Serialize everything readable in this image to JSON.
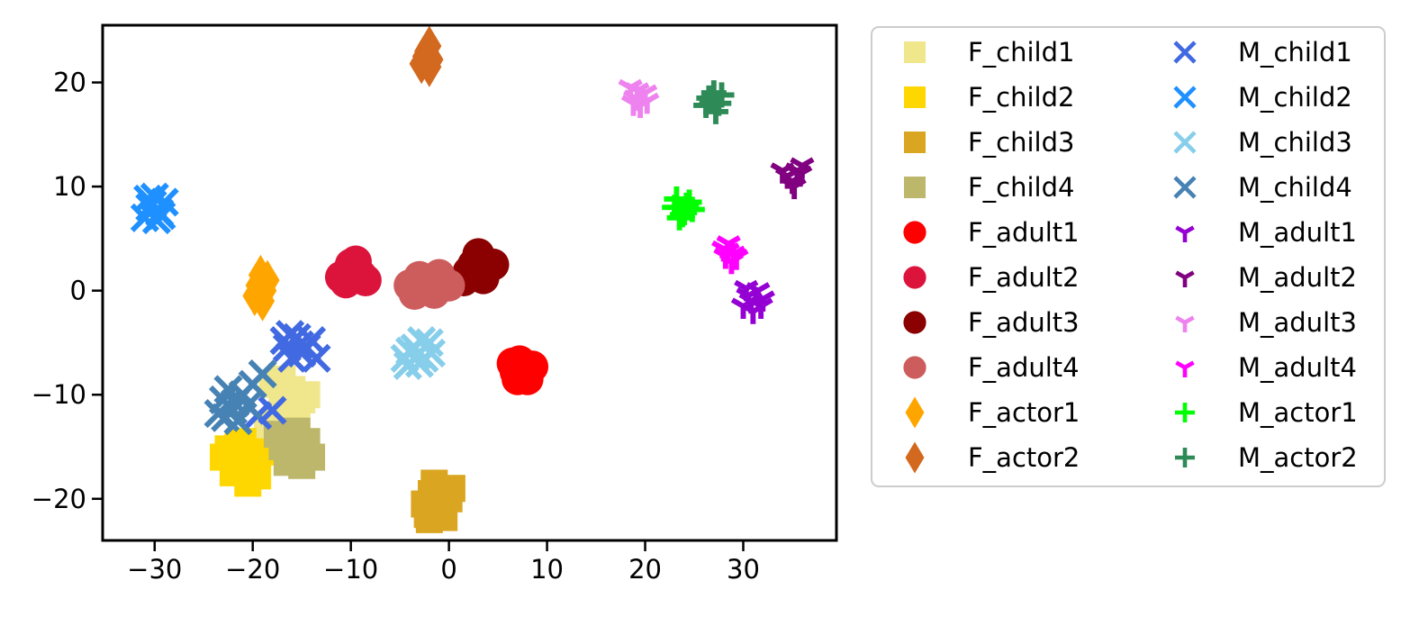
{
  "chart_data": {
    "type": "scatter",
    "title": "",
    "xlabel": "",
    "ylabel": "",
    "xlim": [
      -35.3,
      39.5
    ],
    "ylim": [
      -24,
      25.5
    ],
    "xticks": [
      -30,
      -20,
      -10,
      0,
      10,
      20,
      30
    ],
    "yticks": [
      -20,
      -10,
      0,
      10,
      20
    ],
    "xtick_labels": [
      "−30",
      "−20",
      "−10",
      "0",
      "10",
      "20",
      "30"
    ],
    "ytick_labels": [
      "−20",
      "−10",
      "0",
      "10",
      "20"
    ],
    "grid": false,
    "legend_position": "outside-right",
    "legend_columns": 2,
    "series": [
      {
        "name": "F_child1",
        "marker": "square",
        "color": "#F0E68C",
        "points": [
          [
            -18,
            -9
          ],
          [
            -17.5,
            -12
          ],
          [
            -16,
            -9.5
          ],
          [
            -15,
            -10.5
          ],
          [
            -14.5,
            -10
          ],
          [
            -17,
            -8.5
          ],
          [
            -16.5,
            -11.5
          ],
          [
            -18.5,
            -13
          ],
          [
            -15.5,
            -12.5
          ],
          [
            -17,
            -10.8
          ]
        ]
      },
      {
        "name": "F_child2",
        "marker": "square",
        "color": "#FFD700",
        "points": [
          [
            -23,
            -16
          ],
          [
            -21.5,
            -15
          ],
          [
            -20,
            -16.5
          ],
          [
            -22,
            -17.5
          ],
          [
            -20.5,
            -18.5
          ],
          [
            -19,
            -15.5
          ],
          [
            -21,
            -14.5
          ],
          [
            -19.5,
            -17.8
          ],
          [
            -22.5,
            -15.2
          ],
          [
            -21.2,
            -16.8
          ]
        ]
      },
      {
        "name": "F_child3",
        "marker": "square",
        "color": "#DAA520",
        "points": [
          [
            -1.8,
            -19.5
          ],
          [
            -1,
            -21
          ],
          [
            -2.5,
            -20.5
          ],
          [
            0,
            -20
          ],
          [
            -1.5,
            -18.5
          ],
          [
            -0.5,
            -21.8
          ],
          [
            -2.2,
            -21.5
          ],
          [
            0.3,
            -19
          ],
          [
            -1.2,
            -20.2
          ],
          [
            -2,
            -22
          ]
        ]
      },
      {
        "name": "F_child4",
        "marker": "square",
        "color": "#BDB76B",
        "points": [
          [
            -17,
            -15
          ],
          [
            -16,
            -14
          ],
          [
            -15,
            -15.5
          ],
          [
            -14,
            -16
          ],
          [
            -16.5,
            -16.5
          ],
          [
            -15.5,
            -13.5
          ],
          [
            -17.5,
            -13.8
          ],
          [
            -14.5,
            -14.5
          ],
          [
            -16.2,
            -15.3
          ],
          [
            -15,
            -16.8
          ]
        ]
      },
      {
        "name": "F_adult1",
        "marker": "circle",
        "color": "#FF0000",
        "points": [
          [
            6.5,
            -7
          ],
          [
            7.5,
            -8
          ],
          [
            8.5,
            -7.3
          ],
          [
            7,
            -8.5
          ],
          [
            8,
            -8.5
          ],
          [
            7.2,
            -6.8
          ],
          [
            6.8,
            -7.8
          ]
        ]
      },
      {
        "name": "F_adult2",
        "marker": "circle",
        "color": "#DC143C",
        "points": [
          [
            -11,
            1.3
          ],
          [
            -10,
            2.5
          ],
          [
            -9,
            1.5
          ],
          [
            -10.5,
            0.8
          ],
          [
            -8.5,
            1
          ],
          [
            -9.5,
            2.8
          ],
          [
            -10.2,
            1.6
          ]
        ]
      },
      {
        "name": "F_adult3",
        "marker": "circle",
        "color": "#8B0000",
        "points": [
          [
            1.5,
            1
          ],
          [
            2.5,
            2.5
          ],
          [
            3,
            3.5
          ],
          [
            4.5,
            2.5
          ],
          [
            3.5,
            1.2
          ],
          [
            2,
            1.8
          ],
          [
            3.2,
            2
          ]
        ]
      },
      {
        "name": "F_adult4",
        "marker": "circle",
        "color": "#CD5C5C",
        "points": [
          [
            -4,
            0.5
          ],
          [
            -3,
            1.3
          ],
          [
            -2,
            0.3
          ],
          [
            -1,
            1.5
          ],
          [
            0,
            0.5
          ],
          [
            -3.5,
            -0.3
          ],
          [
            -1.5,
            -0.2
          ],
          [
            -2.5,
            0.8
          ]
        ]
      },
      {
        "name": "F_actor1",
        "marker": "diamond",
        "color": "#FFA500",
        "points": [
          [
            -19.5,
            0.5
          ],
          [
            -19,
            -1
          ],
          [
            -18.5,
            1
          ],
          [
            -19.8,
            -0.5
          ],
          [
            -18.8,
            0
          ],
          [
            -19.2,
            1.5
          ],
          [
            -19,
            -0.2
          ]
        ]
      },
      {
        "name": "F_actor2",
        "marker": "diamond",
        "color": "#D2691E",
        "points": [
          [
            -2.5,
            22.5
          ],
          [
            -2,
            23.5
          ],
          [
            -2.8,
            21.8
          ],
          [
            -1.8,
            22.2
          ],
          [
            -2.3,
            23
          ],
          [
            -2,
            21.5
          ],
          [
            -2.4,
            22.2
          ]
        ]
      },
      {
        "name": "M_child1",
        "marker": "x",
        "color": "#4169E1",
        "points": [
          [
            -16.5,
            -5.5
          ],
          [
            -15.5,
            -4.5
          ],
          [
            -14.5,
            -5.5
          ],
          [
            -16,
            -6.5
          ],
          [
            -15,
            -6
          ],
          [
            -14,
            -4.8
          ],
          [
            -13.5,
            -6.5
          ],
          [
            -16.8,
            -4.8
          ],
          [
            -15.2,
            -5.2
          ],
          [
            -18,
            -11.5
          ],
          [
            -19.5,
            -12
          ],
          [
            -16.2,
            -4.2
          ]
        ]
      },
      {
        "name": "M_child2",
        "marker": "x",
        "color": "#1E90FF",
        "points": [
          [
            -30.5,
            8
          ],
          [
            -29.5,
            7.5
          ],
          [
            -30,
            9
          ],
          [
            -29,
            8.5
          ],
          [
            -31,
            7
          ],
          [
            -29.3,
            7.2
          ],
          [
            -30.2,
            8.3
          ],
          [
            -29.8,
            6.8
          ],
          [
            -30.7,
            8.8
          ]
        ]
      },
      {
        "name": "M_child3",
        "marker": "x",
        "color": "#87CEEB",
        "points": [
          [
            -4.5,
            -6.5
          ],
          [
            -3.5,
            -5.5
          ],
          [
            -2.5,
            -6.5
          ],
          [
            -3,
            -7
          ],
          [
            -2,
            -5
          ],
          [
            -4,
            -5.8
          ],
          [
            -3.2,
            -6.2
          ],
          [
            -1.8,
            -6
          ],
          [
            -4.2,
            -7.2
          ],
          [
            -2.8,
            -4.8
          ]
        ]
      },
      {
        "name": "M_child4",
        "marker": "x",
        "color": "#4682B4",
        "points": [
          [
            -23,
            -10.5
          ],
          [
            -22,
            -11.5
          ],
          [
            -21,
            -10
          ],
          [
            -22.5,
            -9.5
          ],
          [
            -20.5,
            -11
          ],
          [
            -21.5,
            -12.5
          ],
          [
            -20,
            -9
          ],
          [
            -23.5,
            -11.8
          ],
          [
            -19,
            -8
          ],
          [
            -21.8,
            -10.8
          ],
          [
            -22.8,
            -12.2
          ]
        ]
      },
      {
        "name": "M_adult1",
        "marker": "tri",
        "color": "#9400D3",
        "points": [
          [
            30.5,
            -0.5
          ],
          [
            31.5,
            0
          ],
          [
            30,
            -1.5
          ],
          [
            32,
            -0.8
          ],
          [
            31,
            -2
          ],
          [
            30.8,
            -1
          ],
          [
            31.8,
            -1.5
          ],
          [
            30.3,
            0.2
          ]
        ]
      },
      {
        "name": "M_adult2",
        "marker": "tri",
        "color": "#800080",
        "points": [
          [
            34.5,
            11
          ],
          [
            35.5,
            11.5
          ],
          [
            35,
            10.5
          ],
          [
            36,
            12
          ],
          [
            34,
            11.5
          ],
          [
            35.2,
            10
          ],
          [
            35.8,
            11.2
          ]
        ]
      },
      {
        "name": "M_adult3",
        "marker": "tri",
        "color": "#EE82EE",
        "points": [
          [
            19,
            18.5
          ],
          [
            20,
            19
          ],
          [
            18.5,
            19.5
          ],
          [
            19.5,
            17.8
          ],
          [
            20.2,
            18.2
          ],
          [
            19.2,
            19.2
          ],
          [
            18.8,
            18
          ]
        ]
      },
      {
        "name": "M_adult4",
        "marker": "tri",
        "color": "#FF00FF",
        "points": [
          [
            28,
            4
          ],
          [
            29,
            3.5
          ],
          [
            28.5,
            4.5
          ],
          [
            29.3,
            3.2
          ],
          [
            28.2,
            3.3
          ],
          [
            28.8,
            2.8
          ],
          [
            28.4,
            3.8
          ]
        ]
      },
      {
        "name": "M_actor1",
        "marker": "plus",
        "color": "#00FF00",
        "points": [
          [
            23,
            8
          ],
          [
            24,
            7.5
          ],
          [
            24.5,
            8.5
          ],
          [
            23.5,
            7
          ],
          [
            24.8,
            7.8
          ],
          [
            23.2,
            8.8
          ],
          [
            24.2,
            8.2
          ],
          [
            23.8,
            7.3
          ]
        ]
      },
      {
        "name": "M_actor2",
        "marker": "plus",
        "color": "#2E8B57",
        "points": [
          [
            26.5,
            18.5
          ],
          [
            27.5,
            18
          ],
          [
            27,
            19
          ],
          [
            26.2,
            17.8
          ],
          [
            27.8,
            18.8
          ],
          [
            27.2,
            17.2
          ],
          [
            26.8,
            18.3
          ]
        ]
      }
    ]
  }
}
